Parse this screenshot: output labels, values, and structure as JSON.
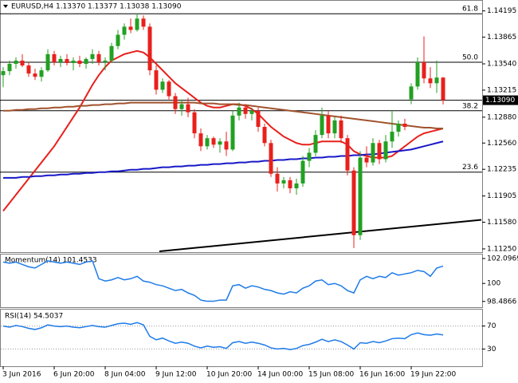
{
  "chart_data": [
    {
      "type": "candlestick",
      "title": "EURUSD,H4  1.13370 1.13377 1.13038 1.13090",
      "categories": [
        "3 Jun 2016",
        null,
        null,
        null,
        null,
        null,
        null,
        null,
        "6 Jun 20:00",
        null,
        null,
        null,
        null,
        null,
        null,
        null,
        "8 Jun 04:00",
        null,
        null,
        null,
        null,
        null,
        null,
        null,
        "9 Jun 12:00",
        null,
        null,
        null,
        null,
        null,
        null,
        null,
        "10 Jun 20:00",
        null,
        null,
        null,
        null,
        null,
        null,
        null,
        "14 Jun 00:00",
        null,
        null,
        null,
        null,
        null,
        null,
        null,
        "15 Jun 08:00",
        null,
        null,
        null,
        null,
        null,
        null,
        null,
        "16 Jun 16:00",
        null,
        null,
        null,
        null,
        null,
        null,
        null,
        "19 Jun 22:00",
        null,
        null,
        null,
        null,
        null
      ],
      "candles": [
        [
          1.134,
          1.135,
          1.1325,
          1.1345
        ],
        [
          1.1345,
          1.1358,
          1.134,
          1.1354
        ],
        [
          1.1354,
          1.1362,
          1.1348,
          1.1358
        ],
        [
          1.1358,
          1.1366,
          1.135,
          1.1352
        ],
        [
          1.1352,
          1.1356,
          1.1338,
          1.1342
        ],
        [
          1.1342,
          1.1348,
          1.1334,
          1.1338
        ],
        [
          1.1338,
          1.135,
          1.1332,
          1.1346
        ],
        [
          1.1346,
          1.1372,
          1.1344,
          1.1366
        ],
        [
          1.1366,
          1.137,
          1.1352,
          1.1356
        ],
        [
          1.1356,
          1.1364,
          1.135,
          1.136
        ],
        [
          1.136,
          1.1366,
          1.1352,
          1.1355
        ],
        [
          1.1355,
          1.1362,
          1.1346,
          1.1358
        ],
        [
          1.1358,
          1.1364,
          1.135,
          1.1354
        ],
        [
          1.1354,
          1.1362,
          1.1348,
          1.136
        ],
        [
          1.136,
          1.1372,
          1.1354,
          1.1366
        ],
        [
          1.1366,
          1.137,
          1.1352,
          1.1356
        ],
        [
          1.1356,
          1.1362,
          1.1346,
          1.1358
        ],
        [
          1.1358,
          1.138,
          1.1355,
          1.1376
        ],
        [
          1.1376,
          1.1396,
          1.1372,
          1.139
        ],
        [
          1.139,
          1.1404,
          1.1384,
          1.14
        ],
        [
          1.14,
          1.141,
          1.1392,
          1.1396
        ],
        [
          1.1396,
          1.1416,
          1.1394,
          1.141
        ],
        [
          1.141,
          1.1414,
          1.1396,
          1.14
        ],
        [
          1.14,
          1.1404,
          1.134,
          1.1346
        ],
        [
          1.1346,
          1.1352,
          1.1316,
          1.1322
        ],
        [
          1.1322,
          1.1336,
          1.1318,
          1.1332
        ],
        [
          1.1332,
          1.1334,
          1.131,
          1.1314
        ],
        [
          1.1314,
          1.1318,
          1.1292,
          1.1298
        ],
        [
          1.1298,
          1.131,
          1.129,
          1.1304
        ],
        [
          1.1304,
          1.1312,
          1.1288,
          1.1294
        ],
        [
          1.1294,
          1.1298,
          1.1262,
          1.1268
        ],
        [
          1.1268,
          1.1274,
          1.1246,
          1.1252
        ],
        [
          1.1252,
          1.1266,
          1.1248,
          1.1262
        ],
        [
          1.1262,
          1.1264,
          1.125,
          1.1254
        ],
        [
          1.1254,
          1.1262,
          1.1244,
          1.1258
        ],
        [
          1.1258,
          1.127,
          1.124,
          1.1248
        ],
        [
          1.1248,
          1.1296,
          1.1246,
          1.129
        ],
        [
          1.129,
          1.1306,
          1.1284,
          1.13
        ],
        [
          1.13,
          1.1304,
          1.1286,
          1.1292
        ],
        [
          1.1292,
          1.13,
          1.1284,
          1.1296
        ],
        [
          1.1296,
          1.13,
          1.127,
          1.1276
        ],
        [
          1.1276,
          1.128,
          1.1252,
          1.1256
        ],
        [
          1.1256,
          1.126,
          1.1214,
          1.1218
        ],
        [
          1.1218,
          1.1226,
          1.1196,
          1.1206
        ],
        [
          1.1206,
          1.1214,
          1.12,
          1.121
        ],
        [
          1.121,
          1.1214,
          1.1194,
          1.12
        ],
        [
          1.12,
          1.1212,
          1.1192,
          1.1206
        ],
        [
          1.1206,
          1.124,
          1.1202,
          1.1234
        ],
        [
          1.1234,
          1.125,
          1.1226,
          1.1244
        ],
        [
          1.1244,
          1.1272,
          1.124,
          1.1266
        ],
        [
          1.1266,
          1.13,
          1.1262,
          1.129
        ],
        [
          1.129,
          1.1296,
          1.1262,
          1.1268
        ],
        [
          1.1268,
          1.1288,
          1.1262,
          1.1284
        ],
        [
          1.1284,
          1.129,
          1.1256,
          1.1262
        ],
        [
          1.1262,
          1.1266,
          1.1216,
          1.1222
        ],
        [
          1.1222,
          1.1226,
          1.1126,
          1.1142
        ],
        [
          1.1142,
          1.1246,
          1.1136,
          1.1238
        ],
        [
          1.1238,
          1.1252,
          1.1226,
          1.1232
        ],
        [
          1.1232,
          1.1262,
          1.1228,
          1.1256
        ],
        [
          1.1256,
          1.126,
          1.123,
          1.1236
        ],
        [
          1.1236,
          1.1266,
          1.1232,
          1.1258
        ],
        [
          1.1258,
          1.1296,
          1.125,
          1.127
        ],
        [
          1.127,
          1.1284,
          1.1264,
          1.128
        ],
        [
          1.128,
          1.1286,
          1.1272,
          1.1276
        ],
        [
          1.131,
          1.133,
          1.1304,
          1.1326
        ],
        [
          1.1326,
          1.1362,
          1.1322,
          1.1356
        ],
        [
          1.1356,
          1.1388,
          1.133,
          1.1336
        ],
        [
          1.1336,
          1.135,
          1.1324,
          1.133
        ],
        [
          1.133,
          1.1358,
          1.1318,
          1.1337
        ],
        [
          1.1337,
          1.13377,
          1.13038,
          1.1309
        ]
      ],
      "bull_color": "#22a022",
      "bear_color": "#e8201c",
      "lines": [
        {
          "color": "#e8201c",
          "values": [
            1.1172,
            1.1182,
            1.1192,
            1.1202,
            1.1212,
            1.1222,
            1.1232,
            1.1242,
            1.1252,
            1.1264,
            1.1276,
            1.1288,
            1.13,
            1.1314,
            1.1328,
            1.134,
            1.135,
            1.1358,
            1.1362,
            1.1366,
            1.1368,
            1.137,
            1.1368,
            1.1362,
            1.1354,
            1.1346,
            1.1338,
            1.133,
            1.1324,
            1.1318,
            1.1312,
            1.1306,
            1.1302,
            1.13,
            1.13,
            1.1302,
            1.1304,
            1.1304,
            1.1302,
            1.1298,
            1.1292,
            1.1284,
            1.1276,
            1.127,
            1.1264,
            1.126,
            1.1256,
            1.1254,
            1.1254,
            1.1256,
            1.1258,
            1.1258,
            1.1258,
            1.1258,
            1.1254,
            1.1246,
            1.1242,
            1.124,
            1.1238,
            1.1238,
            1.1238,
            1.124,
            1.1246,
            1.1252,
            1.1258,
            1.1264,
            1.1268,
            1.127,
            1.1272,
            1.1274
          ]
        },
        {
          "color": "#a0522d",
          "values": [
            1.1296,
            1.1296,
            1.1297,
            1.1297,
            1.1298,
            1.1298,
            1.1299,
            1.1299,
            1.13,
            1.13,
            1.1301,
            1.1301,
            1.1302,
            1.1302,
            1.1303,
            1.1303,
            1.1304,
            1.1304,
            1.1305,
            1.1305,
            1.1306,
            1.1306,
            1.1306,
            1.1306,
            1.1306,
            1.1306,
            1.1306,
            1.1306,
            1.1306,
            1.1306,
            1.1306,
            1.1305,
            1.1305,
            1.1305,
            1.1304,
            1.1304,
            1.1304,
            1.1303,
            1.1303,
            1.1302,
            1.1301,
            1.13,
            1.1299,
            1.1298,
            1.1297,
            1.1296,
            1.1295,
            1.1294,
            1.1293,
            1.1292,
            1.1291,
            1.129,
            1.1289,
            1.1288,
            1.1287,
            1.1286,
            1.1285,
            1.1284,
            1.1283,
            1.1282,
            1.1281,
            1.128,
            1.1279,
            1.1278,
            1.1277,
            1.1276,
            1.1275,
            1.1275,
            1.1274,
            1.1274
          ]
        },
        {
          "color": "#1818c8",
          "values": [
            1.1213,
            1.1213,
            1.1213,
            1.1214,
            1.1214,
            1.1215,
            1.1215,
            1.1216,
            1.1216,
            1.1217,
            1.1217,
            1.1218,
            1.1218,
            1.1219,
            1.1219,
            1.122,
            1.122,
            1.1221,
            1.1221,
            1.1222,
            1.1223,
            1.1223,
            1.1224,
            1.1224,
            1.1225,
            1.1226,
            1.1226,
            1.1227,
            1.1227,
            1.1228,
            1.1228,
            1.1229,
            1.1229,
            1.123,
            1.123,
            1.1231,
            1.1231,
            1.1232,
            1.1232,
            1.1233,
            1.1233,
            1.1234,
            1.1234,
            1.1235,
            1.1235,
            1.1236,
            1.1236,
            1.1237,
            1.1237,
            1.1238,
            1.1238,
            1.1239,
            1.1239,
            1.124,
            1.124,
            1.1241,
            1.1241,
            1.1242,
            1.1242,
            1.1243,
            1.1244,
            1.1245,
            1.1246,
            1.1247,
            1.1248,
            1.125,
            1.1252,
            1.1254,
            1.1256,
            1.1258
          ]
        }
      ],
      "trendline": {
        "color": "#000000",
        "x": [
          24.5,
          75
        ],
        "values": [
          1.1122,
          1.1161
        ]
      },
      "levels": [
        {
          "name": "61.8",
          "value": 1.1416
        },
        {
          "name": "50.0",
          "value": 1.1356
        },
        {
          "name": "38.2",
          "value": 1.1296
        },
        {
          "name": "23.6",
          "value": 1.122
        }
      ],
      "last_price": {
        "value": 1.1309,
        "label": "1.13090"
      },
      "ylim": [
        1.1121,
        1.1433
      ],
      "yticks": [
        1.14195,
        {
          "value": 1.1387,
          "label": "1.13865"
        },
        {
          "value": 1.1354,
          "label": "1.13540"
        },
        1.13215,
        {
          "value": 1.1288,
          "label": "1.12880"
        },
        {
          "value": 1.1256,
          "label": "1.12560"
        },
        1.12235,
        1.11905,
        {
          "value": 1.1158,
          "label": "1.11580"
        },
        {
          "value": 1.1125,
          "label": "1.11250"
        }
      ]
    },
    {
      "type": "line",
      "title": "Momentum(14) 101.4533",
      "color": "#1e7be8",
      "values": [
        101.8,
        101.7,
        101.8,
        101.6,
        101.4,
        101.3,
        101.6,
        101.9,
        101.8,
        101.7,
        101.8,
        101.7,
        101.6,
        101.8,
        101.9,
        100.4,
        100.2,
        100.3,
        100.5,
        100.3,
        100.4,
        100.6,
        100.2,
        100.1,
        99.9,
        99.8,
        99.6,
        99.4,
        99.5,
        99.2,
        99.0,
        98.6,
        98.5,
        98.5,
        98.6,
        98.6,
        99.8,
        99.9,
        99.6,
        99.8,
        99.7,
        99.5,
        99.4,
        99.2,
        99.1,
        99.3,
        99.2,
        99.6,
        99.8,
        100.2,
        100.3,
        99.9,
        100.0,
        99.8,
        99.4,
        99.2,
        100.3,
        100.6,
        100.4,
        100.6,
        100.5,
        100.9,
        100.7,
        100.8,
        100.9,
        101.1,
        101.0,
        100.6,
        101.3,
        101.4533
      ],
      "ylim": [
        98.0,
        102.5
      ],
      "yticks": [
        102.0969,
        100,
        98.4866
      ]
    },
    {
      "type": "line",
      "title": "RSI(14) 54.5037",
      "color": "#1e7be8",
      "values": [
        70,
        68,
        71,
        69,
        66,
        64,
        67,
        72,
        70,
        69,
        70,
        68,
        67,
        69,
        71,
        69,
        68,
        71,
        74,
        75,
        73,
        76,
        72,
        52,
        46,
        49,
        44,
        40,
        42,
        40,
        35,
        32,
        35,
        33,
        34,
        31,
        41,
        43,
        40,
        42,
        40,
        37,
        32,
        30,
        31,
        29,
        31,
        36,
        38,
        42,
        47,
        43,
        46,
        43,
        37,
        30,
        41,
        40,
        43,
        41,
        44,
        48,
        49,
        48,
        55,
        58,
        55,
        54,
        56,
        54.5037
      ],
      "ylim": [
        0,
        100
      ],
      "yticks": [
        70,
        30
      ],
      "levels_dotted": true
    }
  ]
}
